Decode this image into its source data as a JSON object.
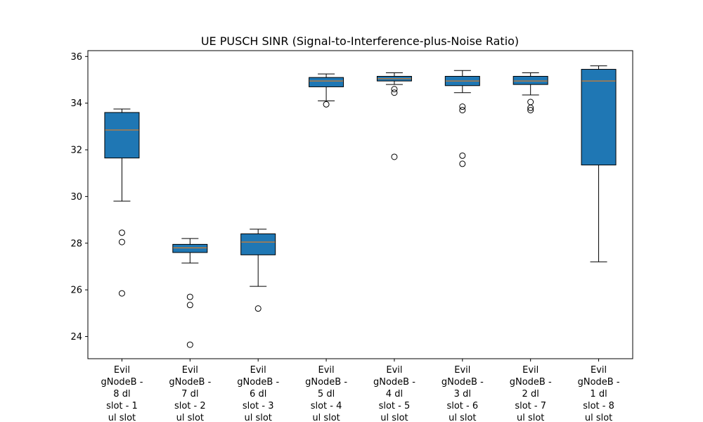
{
  "chart_data": {
    "type": "box",
    "title": "UE PUSCH SINR (Signal-to-Interference-plus-Noise Ratio)",
    "xlabel": "",
    "ylabel": "",
    "ylim": [
      23.05,
      36.25
    ],
    "yticks": [
      24,
      26,
      28,
      30,
      32,
      34,
      36
    ],
    "grid": false,
    "box_color": "#1f77b4",
    "median_color": "#ff7f0e",
    "categories": [
      [
        "Evil",
        "gNodeB -",
        "8 dl",
        "slot - 1",
        "ul slot"
      ],
      [
        "Evil",
        "gNodeB -",
        "7 dl",
        "slot - 2",
        "ul slot"
      ],
      [
        "Evil",
        "gNodeB -",
        "6 dl",
        "slot - 3",
        "ul slot"
      ],
      [
        "Evil",
        "gNodeB -",
        "5 dl",
        "slot - 4",
        "ul slot"
      ],
      [
        "Evil",
        "gNodeB -",
        "4 dl",
        "slot - 5",
        "ul slot"
      ],
      [
        "Evil",
        "gNodeB -",
        "3 dl",
        "slot - 6",
        "ul slot"
      ],
      [
        "Evil",
        "gNodeB -",
        "2 dl",
        "slot - 7",
        "ul slot"
      ],
      [
        "Evil",
        "gNodeB -",
        "1 dl",
        "slot - 8",
        "ul slot"
      ]
    ],
    "boxes": [
      {
        "whislo": 29.8,
        "q1": 31.65,
        "med": 32.85,
        "q3": 33.6,
        "whishi": 33.75,
        "fliers": [
          28.45,
          28.05,
          25.85
        ]
      },
      {
        "whislo": 27.15,
        "q1": 27.6,
        "med": 27.8,
        "q3": 27.95,
        "whishi": 28.2,
        "fliers": [
          25.7,
          25.35,
          23.65
        ]
      },
      {
        "whislo": 26.15,
        "q1": 27.5,
        "med": 28.05,
        "q3": 28.4,
        "whishi": 28.6,
        "fliers": [
          25.2
        ]
      },
      {
        "whislo": 34.1,
        "q1": 34.7,
        "med": 34.95,
        "q3": 35.1,
        "whishi": 35.25,
        "fliers": [
          33.95
        ]
      },
      {
        "whislo": 34.8,
        "q1": 34.95,
        "med": 35.05,
        "q3": 35.15,
        "whishi": 35.3,
        "fliers": [
          34.6,
          34.45,
          31.7
        ]
      },
      {
        "whislo": 34.45,
        "q1": 34.75,
        "med": 34.95,
        "q3": 35.15,
        "whishi": 35.4,
        "fliers": [
          33.85,
          33.7,
          31.75,
          31.4
        ]
      },
      {
        "whislo": 34.35,
        "q1": 34.8,
        "med": 34.95,
        "q3": 35.15,
        "whishi": 35.3,
        "fliers": [
          34.05,
          33.8,
          33.7
        ]
      },
      {
        "whislo": 27.2,
        "q1": 31.35,
        "med": 34.95,
        "q3": 35.45,
        "whishi": 35.6,
        "fliers": []
      }
    ]
  }
}
